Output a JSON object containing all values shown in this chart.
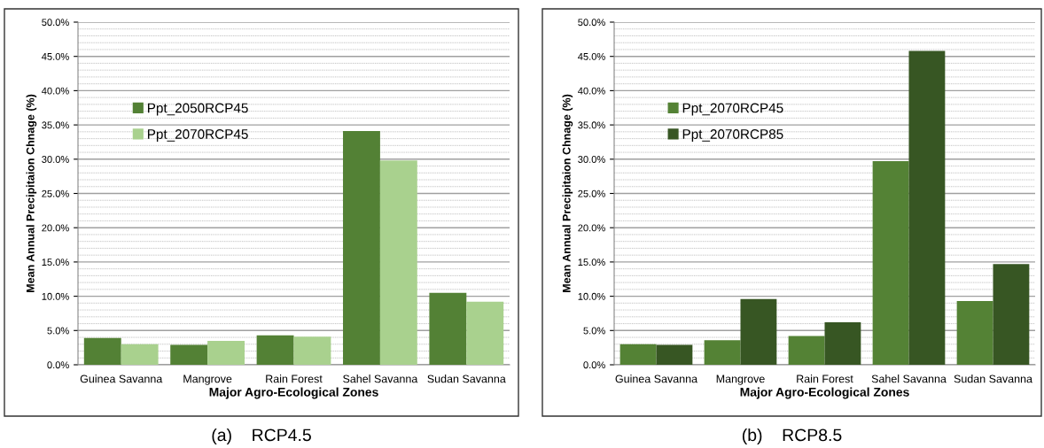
{
  "chart_data": [
    {
      "type": "bar",
      "categories": [
        "Guinea Savanna",
        "Mangrove",
        "Rain Forest",
        "Sahel Savanna",
        "Sudan Savanna"
      ],
      "xlabel": "Major Agro-Ecological Zones",
      "ylabel": "Mean Annual Precipitaion Chnage (%)",
      "series": [
        {
          "name": "Ppt_2050RCP45",
          "color": "#538135",
          "values": [
            3.9,
            2.9,
            4.3,
            34.1,
            10.5
          ]
        },
        {
          "name": "Ppt_2070RCP45",
          "color": "#a9d18e",
          "values": [
            3.0,
            3.5,
            4.1,
            29.8,
            9.2
          ]
        }
      ],
      "ylim": [
        0,
        50
      ],
      "yticks": [
        {
          "value": 0,
          "label": "0.0%"
        },
        {
          "value": 5,
          "label": "5.0%"
        },
        {
          "value": 10,
          "label": "10.0%"
        },
        {
          "value": 15,
          "label": "15.0%"
        },
        {
          "value": 20,
          "label": "20.0%"
        },
        {
          "value": 25,
          "label": "25.0%"
        },
        {
          "value": 30,
          "label": "30.0%"
        },
        {
          "value": 35,
          "label": "35.0%"
        },
        {
          "value": 40,
          "label": "40.0%"
        },
        {
          "value": 45,
          "label": "45.0%"
        },
        {
          "value": 50,
          "label": "50.0%"
        }
      ],
      "grid": "y",
      "legend": "top left",
      "annotations": [
        "(a)    RCP4.5"
      ]
    },
    {
      "type": "bar",
      "categories": [
        "Guinea Savanna",
        "Mangrove",
        "Rain Forest",
        "Sahel Savanna",
        "Sudan Savanna"
      ],
      "xlabel": "Major Agro-Ecological Zones",
      "ylabel": "Mean Annual Precipitaion Chnage (%)",
      "series": [
        {
          "name": "Ppt_2070RCP45",
          "color": "#548235",
          "values": [
            3.0,
            3.6,
            4.2,
            29.7,
            9.3
          ]
        },
        {
          "name": "Ppt_2070RCP85",
          "color": "#375623",
          "values": [
            2.9,
            9.6,
            6.2,
            45.8,
            14.7
          ]
        }
      ],
      "ylim": [
        0,
        50
      ],
      "yticks": [
        {
          "value": 0,
          "label": "0.0%"
        },
        {
          "value": 5,
          "label": "5.0%"
        },
        {
          "value": 10,
          "label": "10.0%"
        },
        {
          "value": 15,
          "label": "15.0%"
        },
        {
          "value": 20,
          "label": "20.0%"
        },
        {
          "value": 25,
          "label": "25.0%"
        },
        {
          "value": 30,
          "label": "30.0%"
        },
        {
          "value": 35,
          "label": "35.0%"
        },
        {
          "value": 40,
          "label": "40.0%"
        },
        {
          "value": 45,
          "label": "45.0%"
        },
        {
          "value": 50,
          "label": "50.0%"
        }
      ],
      "grid": "y",
      "legend": "top left",
      "annotations": [
        "(b)    RCP8.5"
      ]
    }
  ]
}
